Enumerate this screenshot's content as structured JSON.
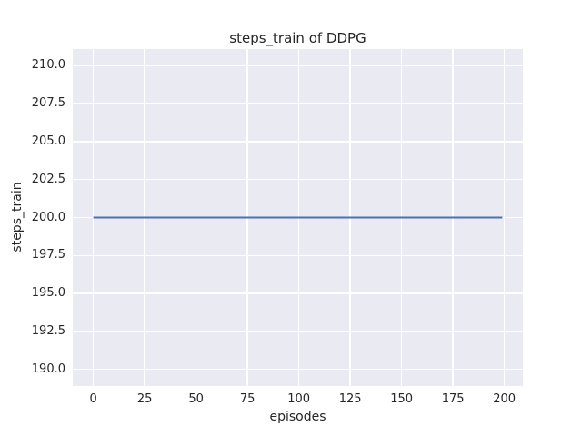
{
  "chart_data": {
    "type": "line",
    "title": "steps_train of DDPG",
    "xlabel": "episodes",
    "ylabel": "steps_train",
    "xlim": [
      -10,
      209
    ],
    "ylim": [
      188.9,
      211.1
    ],
    "xticks": [
      0,
      25,
      50,
      75,
      100,
      125,
      150,
      175,
      200
    ],
    "xtick_labels": [
      "0",
      "25",
      "50",
      "75",
      "100",
      "125",
      "150",
      "175",
      "200"
    ],
    "yticks": [
      190.0,
      192.5,
      195.0,
      197.5,
      200.0,
      202.5,
      205.0,
      207.5,
      210.0
    ],
    "ytick_labels": [
      "190.0",
      "192.5",
      "195.0",
      "197.5",
      "200.0",
      "202.5",
      "205.0",
      "207.5",
      "210.0"
    ],
    "grid": true,
    "legend": "none",
    "plot_bg_color": "#eaeaf2",
    "grid_color": "#ffffff",
    "text_color": "#262626",
    "series": [
      {
        "name": "steps_train",
        "color": "#4c72b0",
        "line_width": 2,
        "x": [
          0,
          199
        ],
        "y": [
          200,
          200
        ],
        "note": "constant value 200 for every episode from 0 to 199"
      }
    ]
  }
}
